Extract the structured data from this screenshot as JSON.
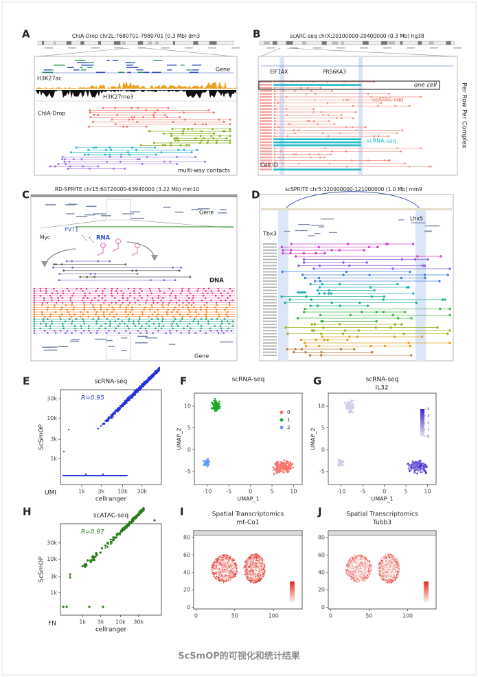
{
  "caption": "ScSmOP的可视化和统计结果",
  "panels": [
    {
      "label": "A",
      "title": "ChIA-Drop chr2L:7680701-7980701 (0.3 Mb) dm3",
      "tracks": [
        "Gene",
        "H3K27ac",
        "H3K27me3",
        "ChIA-Drop",
        "multi-way contacts"
      ]
    },
    {
      "label": "B",
      "title": "scARC-seq  chrX:20100000-20400000 (0.3 Mb) hg38",
      "genes": [
        "EIF1AX",
        "PRS6KA3"
      ],
      "row_label": "one cell",
      "tracks": [
        "scATAC-seq",
        "scRNA-seq"
      ],
      "id_label": "Cell ID",
      "side_label": "Per Row Per Complex"
    },
    {
      "label": "C",
      "title": "RD-SPRITE  chr15:60720000-63940000 (3.22 Mb) mm10",
      "texts": [
        "Gene",
        "Myc",
        "PVT1",
        "RNA",
        "DNA",
        "Gene"
      ]
    },
    {
      "label": "D",
      "title": "scSPRITE  chr5:120000000-121000000 (1.0 Mb) mm9",
      "genes": [
        "Lhx5",
        "Tbx3"
      ]
    },
    {
      "label": "E",
      "title": "scRNA-seq",
      "annotation": "R=0.95",
      "xlabel": "cellranger",
      "ylabel": "ScSmOP",
      "corner_label": "UMI",
      "xscale": "log",
      "yscale": "log",
      "xlim": [
        300,
        90000
      ],
      "ylim": [
        230,
        50000
      ],
      "color": "#2233dd",
      "xticks": [
        {
          "value": 1000,
          "label": "1k"
        },
        {
          "value": 3000,
          "label": "3k"
        },
        {
          "value": 10000,
          "label": "10k"
        },
        {
          "value": 30000,
          "label": "30k"
        }
      ],
      "yticks": [
        {
          "value": 1000,
          "label": "1k"
        },
        {
          "value": 3000,
          "label": "3k"
        },
        {
          "value": 10000,
          "label": "10k"
        },
        {
          "value": 30000,
          "label": "30k"
        }
      ]
    },
    {
      "label": "F",
      "title": "scRNA-seq",
      "xlabel": "UMAP_1",
      "ylabel": "UMAP_2",
      "xlim": [
        -13,
        12
      ],
      "ylim": [
        -8,
        13
      ],
      "xticks": [
        -10,
        -5,
        0,
        5,
        10
      ],
      "yticks": [
        -5,
        0,
        5,
        10
      ],
      "legend": [
        {
          "name": "0",
          "color": "#f8766d"
        },
        {
          "name": "1",
          "color": "#1faa2e"
        },
        {
          "name": "2",
          "color": "#619cff"
        }
      ]
    },
    {
      "label": "G",
      "title": "scRNA-seq",
      "subtitle": "IL32",
      "xlabel": "UMAP_1",
      "ylabel": "UMAP_2",
      "xlim": [
        -13,
        12
      ],
      "ylim": [
        -8,
        13
      ],
      "xticks": [
        -10,
        -5,
        0,
        5,
        10
      ],
      "yticks": [
        -5,
        0,
        5,
        10
      ],
      "colormap": [
        "#e4e4ee",
        "#3a1fd0"
      ],
      "colorbar_ticks": [
        0,
        1,
        2,
        3,
        4
      ]
    },
    {
      "label": "H",
      "title": "scATAC-seq",
      "annotation": "R=0.97",
      "xlabel": "cellranger",
      "ylabel": "ScSmOP",
      "corner_label": "FN",
      "xscale": "log",
      "yscale": "log",
      "xlim": [
        260,
        120000
      ],
      "ylim": [
        220,
        110000
      ],
      "color": "#2a7a1a",
      "xticks": [
        {
          "value": 1000,
          "label": "1k"
        },
        {
          "value": 3000,
          "label": "3k"
        },
        {
          "value": 10000,
          "label": "10k"
        },
        {
          "value": 30000,
          "label": "30k"
        }
      ],
      "yticks": [
        {
          "value": 1000,
          "label": "1k"
        },
        {
          "value": 3000,
          "label": "3k"
        },
        {
          "value": 10000,
          "label": "10k"
        },
        {
          "value": 30000,
          "label": "30k"
        }
      ]
    },
    {
      "label": "I",
      "title": "Spatial Transcriptomics",
      "subtitle": "mt-Co1",
      "xlim": [
        -3,
        137
      ],
      "ylim": [
        -2,
        88
      ],
      "xticks": [
        0,
        50,
        100
      ],
      "yticks": [
        0,
        20,
        40,
        60,
        80
      ],
      "colormap": [
        "#fff2ee",
        "#e02a1e"
      ]
    },
    {
      "label": "J",
      "title": "Spatial Transcriptomics",
      "subtitle": "Tubb3",
      "xlim": [
        -3,
        137
      ],
      "ylim": [
        -2,
        88
      ],
      "xticks": [
        0,
        50,
        100
      ],
      "yticks": [
        0,
        20,
        40,
        60,
        80
      ],
      "colormap": [
        "#fff2ee",
        "#e02a1e"
      ]
    }
  ]
}
